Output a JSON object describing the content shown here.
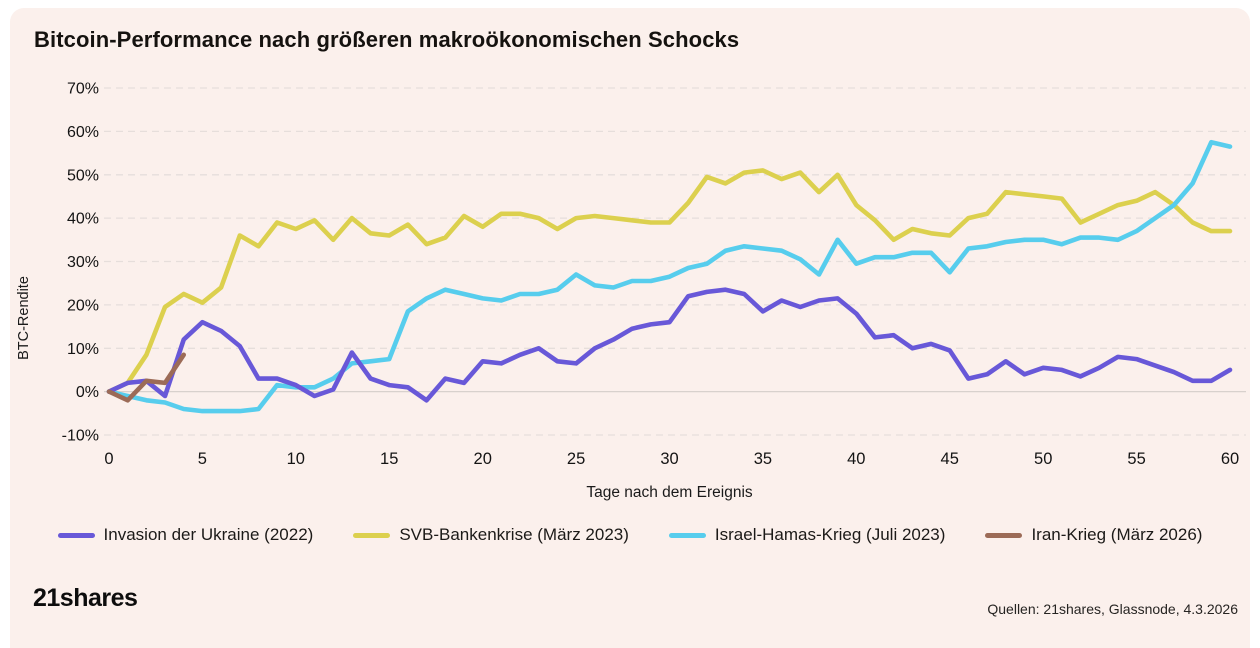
{
  "title": "Bitcoin-Performance nach größeren makroökonomischen Schocks",
  "footer": {
    "logo": "21shares",
    "source": "Quellen: 21shares, Glassnode, 4.3.2026"
  },
  "theme": {
    "background": "#fbf0ec",
    "grid_color": "#e6dedb",
    "zero_line_color": "#d8d1cd",
    "text_color": "#141414"
  },
  "chart_data": {
    "type": "line",
    "title": "Bitcoin-Performance nach größeren makroökonomischen Schocks",
    "xlabel": "Tage nach dem Ereignis",
    "ylabel": "BTC-Rendite",
    "xlim": [
      0,
      60
    ],
    "ylim": [
      -10,
      70
    ],
    "x_ticks": [
      0,
      5,
      10,
      15,
      20,
      25,
      30,
      35,
      40,
      45,
      50,
      55,
      60
    ],
    "y_ticks": [
      70,
      60,
      50,
      40,
      30,
      20,
      10,
      0,
      -10
    ],
    "y_tick_suffix": "%",
    "grid": "horizontal dashed, solid zero line, no vertical grid",
    "legend_position": "bottom",
    "x_start": 0,
    "x_step": 1,
    "series": [
      {
        "name": "Invasion der Ukraine (2022)",
        "color": "#6858d8",
        "values": [
          0,
          2,
          2.5,
          -1,
          12,
          16,
          14,
          10.5,
          3,
          3,
          1.5,
          -1,
          0.5,
          9,
          3,
          1.5,
          1,
          -2,
          3,
          2,
          7,
          6.5,
          8.5,
          10,
          7,
          6.5,
          10,
          12,
          14.5,
          15.5,
          16,
          22,
          23,
          23.5,
          22.5,
          18.5,
          21,
          19.5,
          21,
          21.5,
          18,
          12.5,
          13,
          10,
          11,
          9.5,
          3,
          4,
          7,
          4,
          5.5,
          5,
          3.5,
          5.5,
          8,
          7.5,
          6,
          4.5,
          2.5,
          2.5,
          5
        ]
      },
      {
        "name": "SVB-Bankenkrise (März 2023)",
        "color": "#dcd04e",
        "values": [
          0,
          2,
          8.5,
          19.5,
          22.5,
          20.5,
          24,
          36,
          33.5,
          39,
          37.5,
          39.5,
          35,
          40,
          36.5,
          36,
          38.5,
          34,
          35.5,
          40.5,
          38,
          41,
          41,
          40,
          37.5,
          40,
          40.5,
          40,
          39.5,
          39,
          39,
          43.5,
          49.5,
          48,
          50.5,
          51,
          49,
          50.5,
          46,
          50,
          43,
          39.5,
          35,
          37.5,
          36.5,
          36,
          40,
          41,
          46,
          45.5,
          45,
          44.5,
          39,
          41,
          43,
          44,
          46,
          43,
          39,
          37,
          37
        ]
      },
      {
        "name": "Israel-Hamas-Krieg (Juli 2023)",
        "color": "#57cded",
        "values": [
          0,
          -1,
          -2,
          -2.5,
          -4,
          -4.5,
          -4.5,
          -4.5,
          -4,
          1.5,
          1,
          1,
          3,
          6.5,
          7,
          7.5,
          18.5,
          21.5,
          23.5,
          22.5,
          21.5,
          21,
          22.5,
          22.5,
          23.5,
          27,
          24.5,
          24,
          25.5,
          25.5,
          26.5,
          28.5,
          29.5,
          32.5,
          33.5,
          33,
          32.5,
          30.5,
          27,
          35,
          29.5,
          31,
          31,
          32,
          32,
          27.5,
          33,
          33.5,
          34.5,
          35,
          35,
          34,
          35.5,
          35.5,
          35,
          37,
          40,
          43,
          48,
          57.5,
          56.5
        ]
      },
      {
        "name": "Iran-Krieg (März 2026)",
        "color": "#9c6b57",
        "values": [
          0,
          -2,
          2.5,
          2,
          8.5
        ]
      }
    ]
  }
}
